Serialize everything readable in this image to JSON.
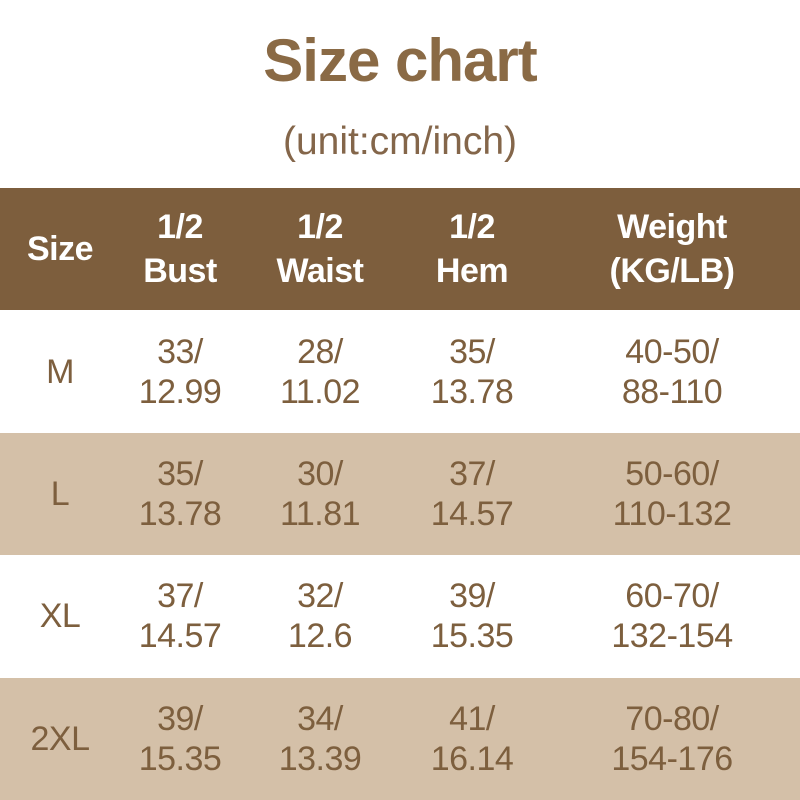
{
  "title": "Size chart",
  "subtitle": "(unit:cm/inch)",
  "colors": {
    "title_brown": "#8A6A45",
    "header_bg": "#7D5E3D",
    "header_text": "#FFFFFF",
    "body_text": "#7D5F3E",
    "alt_row_bg": "#D4C0A8",
    "page_bg": "#FFFFFF"
  },
  "table": {
    "header": [
      [
        "Size",
        ""
      ],
      [
        "1/2",
        "Bust"
      ],
      [
        "1/2",
        "Waist"
      ],
      [
        "1/2",
        "Hem"
      ],
      [
        "Weight",
        "(KG/LB)"
      ]
    ],
    "rows": [
      {
        "size": "M",
        "cells": [
          [
            "33/",
            "12.99"
          ],
          [
            "28/",
            "11.02"
          ],
          [
            "35/",
            "13.78"
          ],
          [
            "40-50/",
            "88-110"
          ]
        ]
      },
      {
        "size": "L",
        "cells": [
          [
            "35/",
            "13.78"
          ],
          [
            "30/",
            "11.81"
          ],
          [
            "37/",
            "14.57"
          ],
          [
            "50-60/",
            "110-132"
          ]
        ]
      },
      {
        "size": "XL",
        "cells": [
          [
            "37/",
            "14.57"
          ],
          [
            "32/",
            "12.6"
          ],
          [
            "39/",
            "15.35"
          ],
          [
            "60-70/",
            "132-154"
          ]
        ]
      },
      {
        "size": "2XL",
        "cells": [
          [
            "39/",
            "15.35"
          ],
          [
            "34/",
            "13.39"
          ],
          [
            "41/",
            "16.14"
          ],
          [
            "70-80/",
            "154-176"
          ]
        ]
      }
    ]
  },
  "chart_data": {
    "type": "table",
    "title": "Size chart",
    "subtitle": "(unit:cm/inch)",
    "columns": [
      "Size",
      "1/2 Bust",
      "1/2 Waist",
      "1/2 Hem",
      "Weight (KG/LB)"
    ],
    "rows": [
      [
        "M",
        "33/12.99",
        "28/11.02",
        "35/13.78",
        "40-50/88-110"
      ],
      [
        "L",
        "35/13.78",
        "30/11.81",
        "37/14.57",
        "50-60/110-132"
      ],
      [
        "XL",
        "37/14.57",
        "32/12.6",
        "39/15.35",
        "60-70/132-154"
      ],
      [
        "2XL",
        "39/15.35",
        "34/13.39",
        "41/16.14",
        "70-80/154-176"
      ]
    ],
    "units": {
      "measurements": "cm/inch",
      "weight": "KG/LB"
    }
  }
}
